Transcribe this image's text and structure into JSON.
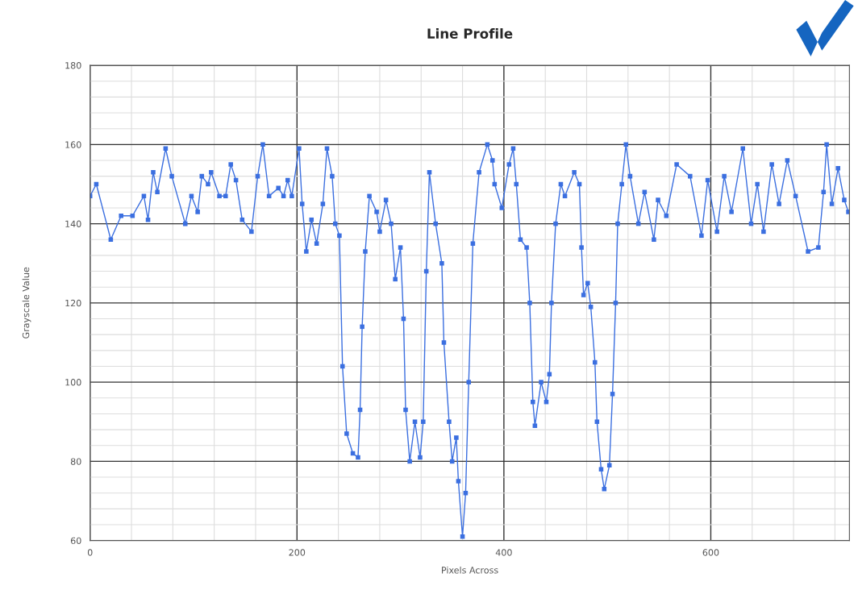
{
  "chart_data": {
    "type": "line",
    "title": "Line Profile",
    "xlabel": "Pixels Across",
    "ylabel": "Grayscale Value",
    "xlim": [
      0,
      734
    ],
    "ylim": [
      60,
      180
    ],
    "xticks": [
      0,
      200,
      400,
      600
    ],
    "yticks": [
      60,
      80,
      100,
      120,
      140,
      160,
      180
    ],
    "grid": true,
    "marker": "square",
    "line_style": "solid",
    "series": [
      {
        "color": "#3b6fe0",
        "x": [
          0,
          6,
          20,
          30,
          41,
          52,
          56,
          61,
          65,
          73,
          79,
          92,
          98,
          104,
          108,
          114,
          117,
          125,
          131,
          136,
          141,
          147,
          156,
          162,
          167,
          173,
          182,
          187,
          191,
          195,
          202,
          205,
          209,
          214,
          219,
          225,
          229,
          234,
          237,
          241,
          244,
          248,
          254,
          259,
          261,
          263,
          266,
          270,
          277,
          280,
          286,
          291,
          295,
          300,
          303,
          305,
          309,
          314,
          319,
          322,
          325,
          328,
          334,
          340,
          342,
          347,
          350,
          354,
          356,
          360,
          363,
          366,
          370,
          376,
          384,
          389,
          391,
          398,
          405,
          409,
          412,
          416,
          422,
          425,
          428,
          430,
          436,
          441,
          444,
          446,
          450,
          455,
          459,
          468,
          473,
          475,
          477,
          481,
          484,
          488,
          490,
          494,
          497,
          502,
          505,
          508,
          510,
          514,
          518,
          522,
          530,
          536,
          545,
          549,
          557,
          567,
          580,
          591,
          597,
          606,
          613,
          620,
          631,
          639,
          645,
          651,
          659,
          666,
          674,
          682,
          694,
          704,
          709,
          712,
          717,
          723,
          729,
          733
        ],
        "values": [
          147,
          150,
          136,
          142,
          142,
          147,
          141,
          153,
          148,
          159,
          152,
          140,
          147,
          143,
          152,
          150,
          153,
          147,
          147,
          155,
          151,
          141,
          138,
          152,
          160,
          147,
          149,
          147,
          151,
          147,
          159,
          145,
          133,
          141,
          135,
          145,
          159,
          152,
          140,
          137,
          104,
          87,
          82,
          81,
          93,
          114,
          133,
          147,
          143,
          138,
          146,
          140,
          126,
          134,
          116,
          93,
          80,
          90,
          81,
          90,
          128,
          153,
          140,
          130,
          110,
          90,
          80,
          86,
          75,
          61,
          72,
          100,
          135,
          153,
          160,
          156,
          150,
          144,
          155,
          159,
          150,
          136,
          134,
          120,
          95,
          89,
          100,
          95,
          102,
          120,
          140,
          150,
          147,
          153,
          150,
          134,
          122,
          125,
          119,
          105,
          90,
          78,
          73,
          79,
          97,
          120,
          140,
          150,
          160,
          152,
          140,
          148,
          136,
          146,
          142,
          155,
          152,
          137,
          151,
          138,
          152,
          143,
          159,
          140,
          150,
          138,
          155,
          145,
          156,
          147,
          133,
          134,
          148,
          160,
          145,
          154,
          146,
          143
        ]
      }
    ]
  }
}
